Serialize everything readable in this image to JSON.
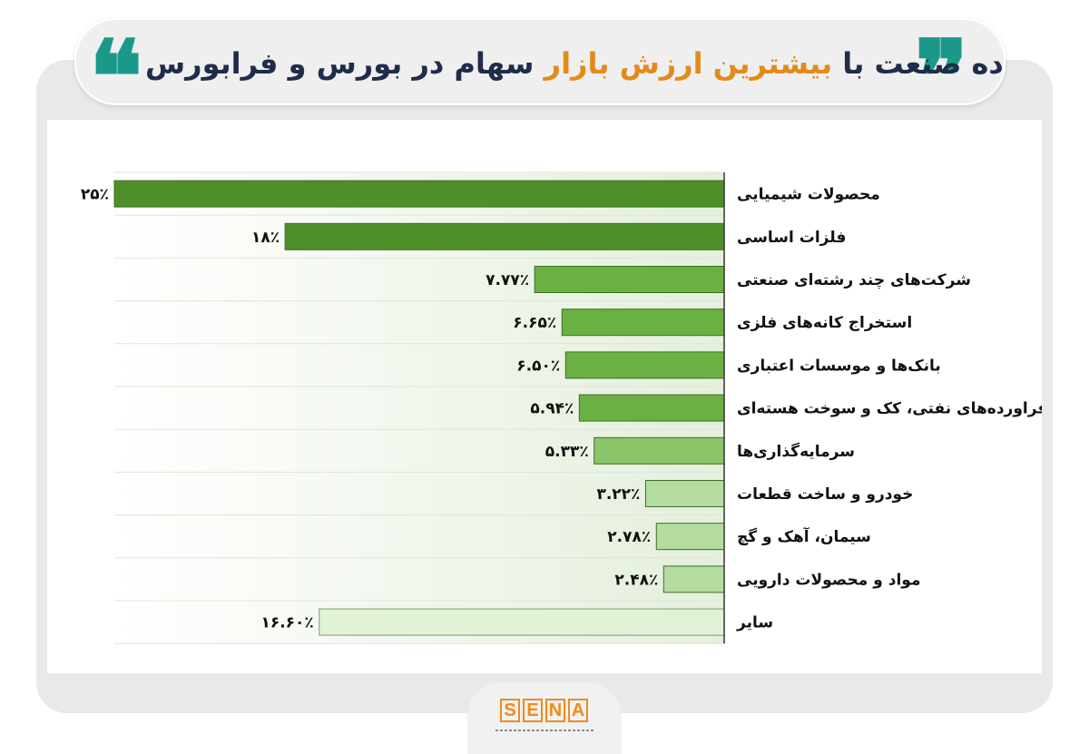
{
  "header": {
    "title_part1": "ده صنعت با",
    "title_accent": "بیشترین ارزش بازار",
    "title_part2": "سهام در بورس و فرابورس",
    "quote_left": "❝",
    "quote_right": "❞"
  },
  "colors": {
    "accent_orange": "#e38a1a",
    "teal_quote": "#1a998a",
    "title_dark": "#1f2c4a",
    "bar_dark_green": "#4f8f2a",
    "bar_mid_green": "#6bb042",
    "bar_light_green": "#b5dca0",
    "bar_pale_green": "#e2f2d6"
  },
  "chart_data": {
    "type": "bar",
    "orientation": "horizontal",
    "title": "ده صنعت با بیشترین ارزش بازار سهام در بورس و فرابورس",
    "categories": [
      "محصولات شیمیایی",
      "فلزات اساسی",
      "شرکت‌های چند رشته‌ای صنعتی",
      "استخراج کانه‌های فلزی",
      "بانک‌ها و موسسات اعتباری",
      "فراورده‌های نفتی، کک و سوخت هسته‌ای",
      "سرمایه‌گذاری‌ها",
      "خودرو و ساخت قطعات",
      "سیمان، آهک و گچ",
      "مواد و محصولات دارویی",
      "سایر"
    ],
    "values": [
      25,
      18,
      7.77,
      6.65,
      6.5,
      5.94,
      5.33,
      3.22,
      2.78,
      2.48,
      16.6
    ],
    "value_labels": [
      "۲۵٪",
      "۱۸٪",
      "۷.۷۷٪",
      "۶.۶۵٪",
      "۶.۵۰٪",
      "۵.۹۴٪",
      "۵.۳۳٪",
      "۳.۲۲٪",
      "۲.۷۸٪",
      "۲.۴۸٪",
      "۱۶.۶۰٪"
    ],
    "xlabel": "",
    "ylabel": "",
    "xlim": [
      0,
      25
    ],
    "grid": true,
    "legend": "none",
    "direction": "right-to-left"
  },
  "logo": {
    "letters": [
      "S",
      "E",
      "N",
      "A"
    ]
  }
}
